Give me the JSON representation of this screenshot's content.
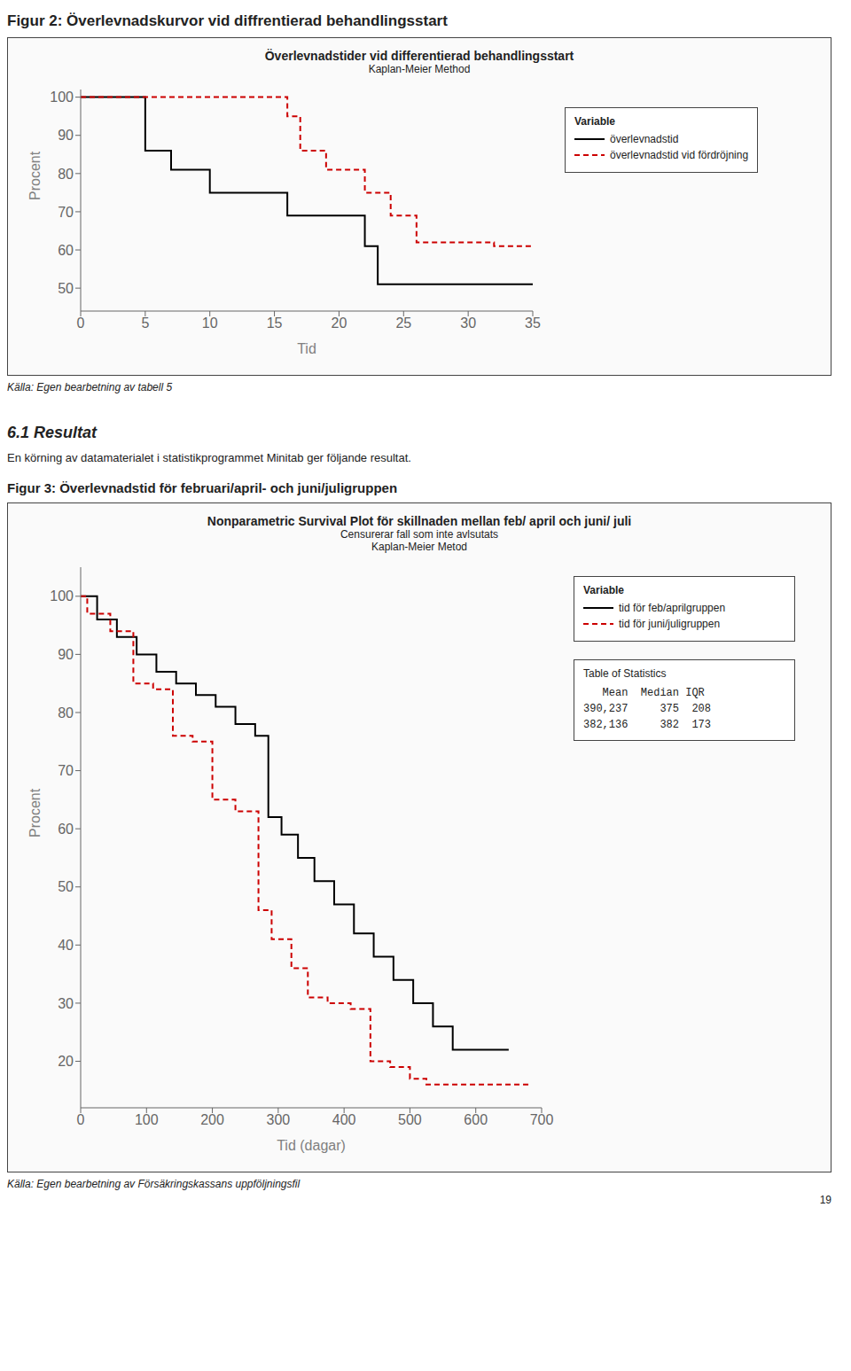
{
  "chart_data": [
    {
      "type": "line",
      "title": "Överlevnadstider vid differentierad behandlingsstart",
      "subtitle": "Kaplan-Meier Method",
      "xlabel": "Tid",
      "ylabel": "Procent",
      "xlim": [
        0,
        35
      ],
      "ylim": [
        44,
        102
      ],
      "xticks": [
        0,
        5,
        10,
        15,
        20,
        25,
        30,
        35
      ],
      "yticks": [
        50,
        60,
        70,
        80,
        90,
        100
      ],
      "grid": false,
      "legend": "right",
      "legend_title": "Variable",
      "series": [
        {
          "name": "överlevnadstid",
          "color": "#000000",
          "line_style": "solid",
          "x": [
            0,
            5,
            5,
            7,
            7,
            10,
            10,
            16,
            16,
            22,
            22,
            23,
            23,
            35
          ],
          "values": [
            100,
            100,
            86,
            86,
            81,
            81,
            75,
            75,
            69,
            69,
            61,
            61,
            51,
            51
          ]
        },
        {
          "name": "överlevnadstid vid fördröjning",
          "color": "#cc0000",
          "line_style": "dashed",
          "x": [
            0,
            16,
            16,
            17,
            17,
            19,
            19,
            22,
            22,
            24,
            24,
            26,
            26,
            32,
            32,
            35
          ],
          "values": [
            100,
            100,
            95,
            95,
            86,
            86,
            81,
            81,
            75,
            75,
            69,
            69,
            62,
            62,
            61,
            61
          ]
        }
      ],
      "annotations": [
        "Figur 2: Överlevnadskurvor vid diffrentierad behandlingsstart",
        "Källa: Egen bearbetning av tabell 5",
        "6.1 Resultat",
        "En körning av datamaterialet i statistikprogrammet Minitab ger följande resultat."
      ]
    },
    {
      "type": "line",
      "title": "Nonparametric Survival Plot för skillnaden mellan feb/ april och juni/ juli",
      "subtitle": [
        "Censurerar fall som inte avlsutats",
        "Kaplan-Meier Metod"
      ],
      "xlabel": "Tid (dagar)",
      "ylabel": "Procent",
      "xlim": [
        0,
        700
      ],
      "ylim": [
        12,
        105
      ],
      "xticks": [
        0,
        100,
        200,
        300,
        400,
        500,
        600,
        700
      ],
      "yticks": [
        20,
        30,
        40,
        50,
        60,
        70,
        80,
        90,
        100
      ],
      "grid": false,
      "legend": "right",
      "legend_title": "Variable",
      "series": [
        {
          "name": "tid för feb/aprilgruppen",
          "color": "#000000",
          "line_style": "solid",
          "x": [
            0,
            25,
            25,
            55,
            55,
            85,
            85,
            115,
            115,
            145,
            145,
            175,
            175,
            205,
            205,
            235,
            235,
            265,
            265,
            285,
            285,
            305,
            305,
            330,
            330,
            355,
            355,
            385,
            385,
            415,
            415,
            445,
            445,
            475,
            475,
            505,
            505,
            535,
            535,
            565,
            565,
            620,
            620,
            650
          ],
          "values": [
            100,
            100,
            96,
            96,
            93,
            93,
            90,
            90,
            87,
            87,
            85,
            85,
            83,
            83,
            81,
            81,
            78,
            78,
            76,
            76,
            62,
            62,
            59,
            59,
            55,
            55,
            51,
            51,
            47,
            47,
            42,
            42,
            38,
            38,
            34,
            34,
            30,
            30,
            26,
            26,
            22,
            22,
            22,
            22
          ]
        },
        {
          "name": "tid för juni/juligruppen",
          "color": "#cc0000",
          "line_style": "dashed",
          "x": [
            0,
            10,
            10,
            45,
            45,
            80,
            80,
            110,
            110,
            140,
            140,
            170,
            170,
            200,
            200,
            235,
            235,
            270,
            270,
            290,
            290,
            320,
            320,
            345,
            345,
            375,
            375,
            410,
            410,
            440,
            440,
            470,
            470,
            500,
            500,
            525,
            525,
            550,
            550,
            590,
            590,
            650,
            650,
            680
          ],
          "values": [
            100,
            100,
            97,
            97,
            94,
            94,
            85,
            85,
            84,
            84,
            76,
            76,
            75,
            75,
            65,
            65,
            63,
            63,
            46,
            46,
            41,
            41,
            36,
            36,
            31,
            31,
            30,
            30,
            29,
            29,
            20,
            20,
            19,
            19,
            17,
            17,
            16,
            16,
            16,
            16,
            16,
            16,
            16,
            16
          ]
        }
      ],
      "annotations": [
        "Figur 3: Överlevnadstid för februari/april- och juni/juligruppen",
        "Table of Statistics",
        "   Mean  Median IQR",
        "390,237     375  208",
        "382,136     382  173",
        "Källa: Egen bearbetning av Försäkringskassans uppföljningsfil",
        "19"
      ]
    }
  ]
}
